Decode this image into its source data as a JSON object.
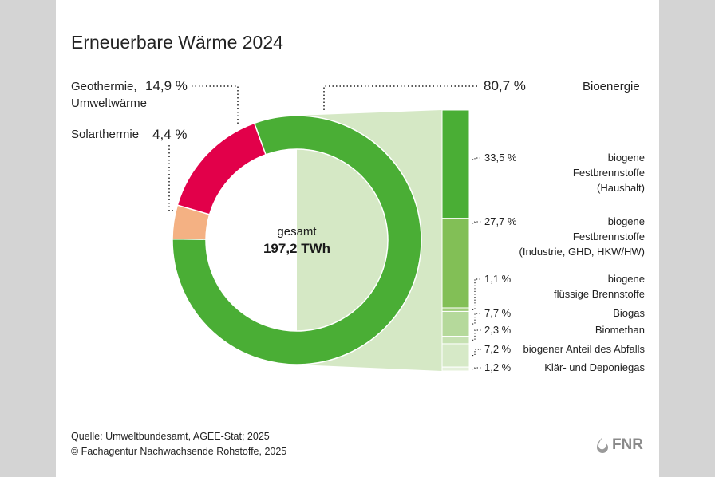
{
  "title": "Erneuerbare Wärme 2024",
  "center": {
    "label": "gesamt",
    "value": "197,2 TWh"
  },
  "chart_data": {
    "type": "pie",
    "title": "Erneuerbare Wärme 2024",
    "total": "197,2 TWh",
    "slices": [
      {
        "name": "Bioenergie",
        "value": 80.7,
        "label": "80,7 %",
        "color": "#4aae35"
      },
      {
        "name": "Geothermie, Umweltwärme",
        "value": 14.9,
        "label": "14,9 %",
        "color": "#e2004a"
      },
      {
        "name": "Solarthermie",
        "value": 4.4,
        "label": "4,4 %",
        "color": "#f4b183"
      }
    ],
    "breakdown": {
      "of": "Bioenergie",
      "items": [
        {
          "name": "biogene Festbrennstoffe (Haushalt)",
          "lines": [
            "biogene",
            "Festbrennstoffe",
            "(Haushalt)"
          ],
          "value": 33.5,
          "label": "33,5 %",
          "color": "#4aae35"
        },
        {
          "name": "biogene Festbrennstoffe (Industrie, GHD, HKW/HW)",
          "lines": [
            "biogene",
            "Festbrennstoffe",
            "(Industrie, GHD, HKW/HW)"
          ],
          "value": 27.7,
          "label": "27,7 %",
          "color": "#82bf56"
        },
        {
          "name": "biogene flüssige Brennstoffe",
          "lines": [
            "biogene",
            "flüssige Brennstoffe"
          ],
          "value": 1.1,
          "label": "1,1 %",
          "color": "#9fcd7a"
        },
        {
          "name": "Biogas",
          "lines": [
            "Biogas"
          ],
          "value": 7.7,
          "label": "7,7 %",
          "color": "#b5d99b"
        },
        {
          "name": "Biomethan",
          "lines": [
            "Biomethan"
          ],
          "value": 2.3,
          "label": "2,3 %",
          "color": "#c6e1b2"
        },
        {
          "name": "biogener Anteil des Abfalls",
          "lines": [
            "biogener Anteil des Abfalls"
          ],
          "value": 7.2,
          "label": "7,2 %",
          "color": "#d6e9c7"
        },
        {
          "name": "Klär- und Deponiegas",
          "lines": [
            "Klär- und Deponiegas"
          ],
          "value": 1.2,
          "label": "1,2 %",
          "color": "#e4f0da"
        }
      ]
    }
  },
  "labels": {
    "bio": {
      "pct": "80,7 %",
      "name": "Bioenergie"
    },
    "geo": {
      "pct": "14,9 %",
      "name1": "Geothermie,",
      "name2": "Umweltwärme"
    },
    "solar": {
      "pct": "4,4 %",
      "name": "Solarthermie"
    }
  },
  "source": {
    "line1": "Quelle: Umweltbundesamt, AGEE-Stat; 2025",
    "line2": "© Fachagentur Nachwachsende Rohstoffe, 2025"
  },
  "logo": {
    "text": "FNR"
  },
  "colors": {
    "card": "#ffffff",
    "background": "#d4d4d4",
    "connector": "#d5e8c5"
  }
}
